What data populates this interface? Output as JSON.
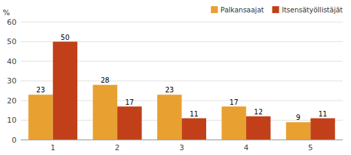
{
  "chart_data": {
    "type": "bar",
    "ylabel": "%",
    "categories": [
      "1",
      "2",
      "3",
      "4",
      "5"
    ],
    "series": [
      {
        "name": "Palkansaajat",
        "color": "#E8A030",
        "values": [
          23,
          28,
          23,
          17,
          9
        ]
      },
      {
        "name": "Itsensätyöllistäjät",
        "color": "#C1401A",
        "values": [
          50,
          17,
          11,
          12,
          11
        ]
      }
    ],
    "ylim": [
      0,
      60
    ],
    "yticks": [
      0,
      10,
      20,
      30,
      40,
      50,
      60
    ],
    "grid": true,
    "legend": "upper right",
    "data_labels": true
  }
}
